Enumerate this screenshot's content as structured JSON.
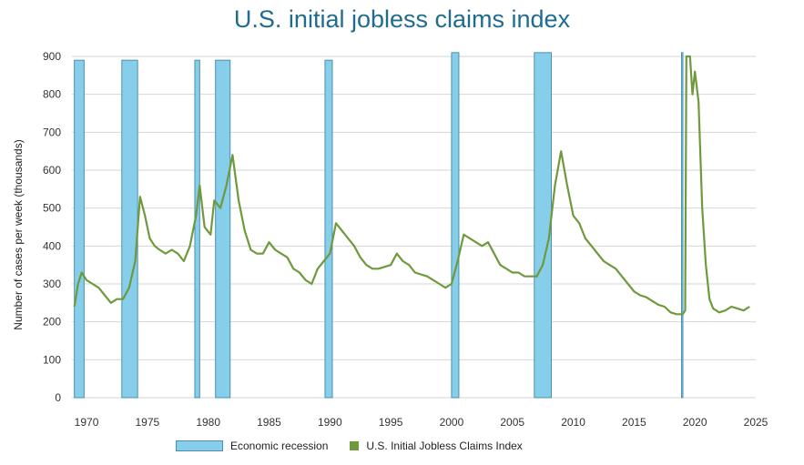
{
  "chart_data": {
    "type": "line",
    "title": "U.S. initial jobless claims index",
    "ylabel": "Number of cases per week (thousands)",
    "xlabel": "",
    "xlim": [
      1968.8,
      2025
    ],
    "ylim": [
      0,
      900
    ],
    "grid": true,
    "legend_position": "bottom",
    "x_ticks": [
      1970,
      1975,
      1980,
      1985,
      1990,
      1995,
      2000,
      2005,
      2010,
      2015,
      2020,
      2025
    ],
    "y_ticks": [
      0,
      100,
      200,
      300,
      400,
      500,
      600,
      700,
      800,
      900
    ],
    "colors": {
      "recession_fill": "#87ceeb",
      "recession_stroke": "#4a90b0",
      "line": "#6e9a3c",
      "title": "#1f6c8e"
    },
    "recessions": [
      {
        "start": 1969.0,
        "end": 1969.8,
        "top": 890
      },
      {
        "start": 1972.9,
        "end": 1974.2,
        "top": 890
      },
      {
        "start": 1978.9,
        "end": 1979.3,
        "top": 890
      },
      {
        "start": 1980.6,
        "end": 1981.8,
        "top": 890
      },
      {
        "start": 1989.6,
        "end": 1990.2,
        "top": 890
      },
      {
        "start": 2000.0,
        "end": 2000.6,
        "top": 910
      },
      {
        "start": 2006.8,
        "end": 2008.2,
        "top": 910
      },
      {
        "start": 2018.9,
        "end": 2019.0,
        "top": 910
      }
    ],
    "series": [
      {
        "name": "U.S. Initial Jobless Claims Index",
        "points": [
          [
            1969.0,
            240
          ],
          [
            1969.3,
            300
          ],
          [
            1969.6,
            330
          ],
          [
            1970.0,
            310
          ],
          [
            1970.5,
            300
          ],
          [
            1971.0,
            290
          ],
          [
            1971.5,
            270
          ],
          [
            1972.0,
            250
          ],
          [
            1972.5,
            260
          ],
          [
            1973.0,
            260
          ],
          [
            1973.5,
            290
          ],
          [
            1974.0,
            360
          ],
          [
            1974.4,
            530
          ],
          [
            1974.8,
            480
          ],
          [
            1975.2,
            420
          ],
          [
            1975.6,
            400
          ],
          [
            1976.0,
            390
          ],
          [
            1976.5,
            380
          ],
          [
            1977.0,
            390
          ],
          [
            1977.5,
            380
          ],
          [
            1978.0,
            360
          ],
          [
            1978.5,
            400
          ],
          [
            1979.0,
            480
          ],
          [
            1979.3,
            560
          ],
          [
            1979.7,
            450
          ],
          [
            1980.2,
            430
          ],
          [
            1980.5,
            520
          ],
          [
            1981.0,
            500
          ],
          [
            1981.5,
            560
          ],
          [
            1982.0,
            640
          ],
          [
            1982.5,
            520
          ],
          [
            1983.0,
            440
          ],
          [
            1983.5,
            390
          ],
          [
            1984.0,
            380
          ],
          [
            1984.5,
            380
          ],
          [
            1985.0,
            410
          ],
          [
            1985.5,
            390
          ],
          [
            1986.0,
            380
          ],
          [
            1986.5,
            370
          ],
          [
            1987.0,
            340
          ],
          [
            1987.5,
            330
          ],
          [
            1988.0,
            310
          ],
          [
            1988.5,
            300
          ],
          [
            1989.0,
            340
          ],
          [
            1989.5,
            360
          ],
          [
            1990.0,
            380
          ],
          [
            1990.5,
            460
          ],
          [
            1991.0,
            440
          ],
          [
            1991.5,
            420
          ],
          [
            1992.0,
            400
          ],
          [
            1992.5,
            370
          ],
          [
            1993.0,
            350
          ],
          [
            1993.5,
            340
          ],
          [
            1994.0,
            340
          ],
          [
            1995.0,
            350
          ],
          [
            1995.5,
            380
          ],
          [
            1996.0,
            360
          ],
          [
            1996.5,
            350
          ],
          [
            1997.0,
            330
          ],
          [
            1998.0,
            320
          ],
          [
            1999.0,
            300
          ],
          [
            1999.5,
            290
          ],
          [
            2000.0,
            300
          ],
          [
            2000.5,
            360
          ],
          [
            2001.0,
            430
          ],
          [
            2001.5,
            420
          ],
          [
            2002.0,
            410
          ],
          [
            2002.5,
            400
          ],
          [
            2003.0,
            410
          ],
          [
            2003.5,
            380
          ],
          [
            2004.0,
            350
          ],
          [
            2004.5,
            340
          ],
          [
            2005.0,
            330
          ],
          [
            2005.5,
            330
          ],
          [
            2006.0,
            320
          ],
          [
            2006.5,
            320
          ],
          [
            2007.0,
            320
          ],
          [
            2007.5,
            350
          ],
          [
            2008.0,
            420
          ],
          [
            2008.5,
            560
          ],
          [
            2009.0,
            650
          ],
          [
            2009.5,
            560
          ],
          [
            2010.0,
            480
          ],
          [
            2010.5,
            460
          ],
          [
            2011.0,
            420
          ],
          [
            2011.5,
            400
          ],
          [
            2012.0,
            380
          ],
          [
            2012.5,
            360
          ],
          [
            2013.0,
            350
          ],
          [
            2013.5,
            340
          ],
          [
            2014.0,
            320
          ],
          [
            2014.5,
            300
          ],
          [
            2015.0,
            280
          ],
          [
            2015.5,
            270
          ],
          [
            2016.0,
            265
          ],
          [
            2016.5,
            255
          ],
          [
            2017.0,
            245
          ],
          [
            2017.5,
            240
          ],
          [
            2018.0,
            225
          ],
          [
            2018.5,
            220
          ],
          [
            2019.0,
            220
          ],
          [
            2019.2,
            230
          ],
          [
            2019.3,
            900
          ],
          [
            2019.6,
            900
          ],
          [
            2019.8,
            800
          ],
          [
            2020.0,
            860
          ],
          [
            2020.3,
            780
          ],
          [
            2020.6,
            500
          ],
          [
            2020.9,
            350
          ],
          [
            2021.2,
            260
          ],
          [
            2021.5,
            235
          ],
          [
            2022.0,
            225
          ],
          [
            2022.5,
            230
          ],
          [
            2023.0,
            240
          ],
          [
            2023.5,
            235
          ],
          [
            2024.0,
            230
          ],
          [
            2024.5,
            240
          ]
        ]
      }
    ]
  },
  "legend": {
    "recession_label": "Economic recession",
    "series_label": "U.S. Initial Jobless Claims Index"
  }
}
